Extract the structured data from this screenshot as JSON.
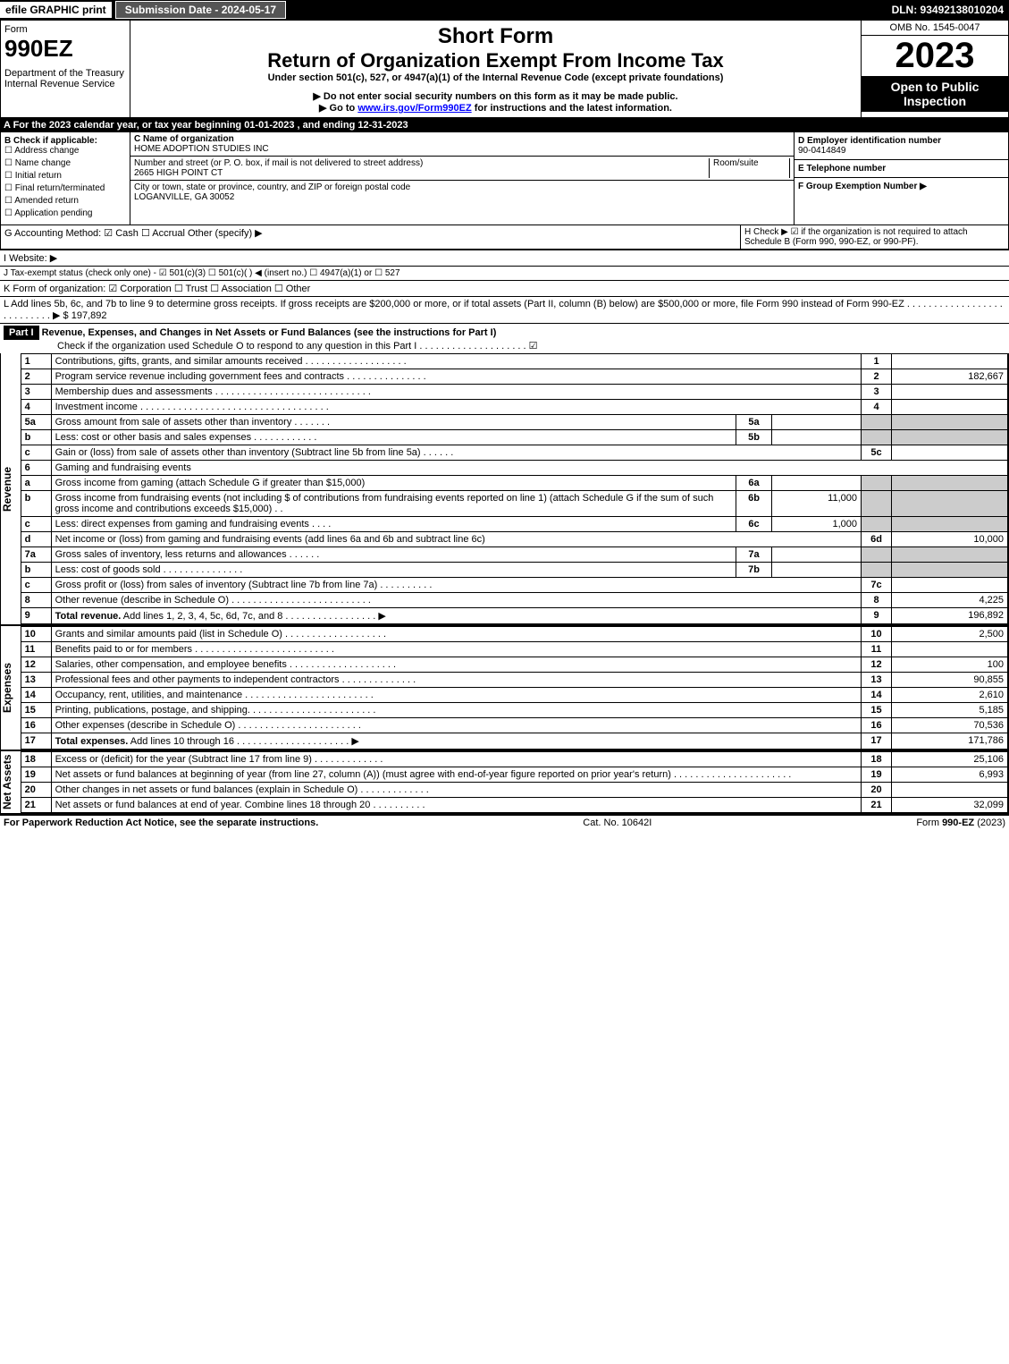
{
  "topbar": {
    "efile": "efile GRAPHIC print",
    "subdate": "Submission Date - 2024-05-17",
    "dln": "DLN: 93492138010204"
  },
  "header": {
    "form_word": "Form",
    "form_no": "990EZ",
    "dept": "Department of the Treasury\nInternal Revenue Service",
    "short_form": "Short Form",
    "title": "Return of Organization Exempt From Income Tax",
    "subtitle": "Under section 501(c), 527, or 4947(a)(1) of the Internal Revenue Code (except private foundations)",
    "note1": "▶ Do not enter social security numbers on this form as it may be made public.",
    "note2_pre": "▶ Go to ",
    "note2_link": "www.irs.gov/Form990EZ",
    "note2_post": " for instructions and the latest information.",
    "omb": "OMB No. 1545-0047",
    "year": "2023",
    "open": "Open to Public Inspection"
  },
  "line_a": "A  For the 2023 calendar year, or tax year beginning 01-01-2023 , and ending 12-31-2023",
  "box_b": {
    "title": "B  Check if applicable:",
    "items": [
      "Address change",
      "Name change",
      "Initial return",
      "Final return/terminated",
      "Amended return",
      "Application pending"
    ]
  },
  "box_c": {
    "label": "C Name of organization",
    "name": "HOME ADOPTION STUDIES INC",
    "addr_label": "Number and street (or P. O. box, if mail is not delivered to street address)",
    "room_label": "Room/suite",
    "addr": "2665 HIGH POINT CT",
    "city_label": "City or town, state or province, country, and ZIP or foreign postal code",
    "city": "LOGANVILLE, GA  30052"
  },
  "box_d": {
    "label": "D Employer identification number",
    "val": "90-0414849"
  },
  "box_e": {
    "label": "E Telephone number",
    "val": ""
  },
  "box_f": {
    "label": "F Group Exemption Number   ▶",
    "val": ""
  },
  "line_g": "G Accounting Method:   ☑ Cash   ☐ Accrual   Other (specify) ▶",
  "line_h": "H  Check ▶ ☑ if the organization is not required to attach Schedule B (Form 990, 990-EZ, or 990-PF).",
  "line_i": "I Website: ▶",
  "line_j": "J Tax-exempt status (check only one) - ☑ 501(c)(3)  ☐ 501(c)(  ) ◀ (insert no.)  ☐ 4947(a)(1) or  ☐ 527",
  "line_k": "K Form of organization:  ☑ Corporation   ☐ Trust   ☐ Association   ☐ Other",
  "line_l": {
    "text": "L Add lines 5b, 6c, and 7b to line 9 to determine gross receipts. If gross receipts are $200,000 or more, or if total assets (Part II, column (B) below) are $500,000 or more, file Form 990 instead of Form 990-EZ  .  .  .  .  .  .  .  .  .  .  .  .  .  .  .  .  .  .  .  .  .  .  .  .  .  .  .  ▶ $",
    "val": "197,892"
  },
  "part1": {
    "label": "Part I",
    "title": "Revenue, Expenses, and Changes in Net Assets or Fund Balances (see the instructions for Part I)",
    "check": "Check if the organization used Schedule O to respond to any question in this Part I  .  .  .  .  .  .  .  .  .  .  .  .  .  .  .  .  .  .  .  . ☑"
  },
  "sections": {
    "revenue": "Revenue",
    "expenses": "Expenses",
    "netassets": "Net Assets"
  },
  "rows": [
    {
      "n": "1",
      "d": "Contributions, gifts, grants, and similar amounts received  .  .  .  .  .  .  .  .  .  .  .  .  .  .  .  .  .  .  .",
      "ln": "1",
      "v": ""
    },
    {
      "n": "2",
      "d": "Program service revenue including government fees and contracts  .  .  .  .  .  .  .  .  .  .  .  .  .  .  .",
      "ln": "2",
      "v": "182,667"
    },
    {
      "n": "3",
      "d": "Membership dues and assessments  .  .  .  .  .  .  .  .  .  .  .  .  .  .  .  .  .  .  .  .  .  .  .  .  .  .  .  .  .",
      "ln": "3",
      "v": ""
    },
    {
      "n": "4",
      "d": "Investment income  .  .  .  .  .  .  .  .  .  .  .  .  .  .  .  .  .  .  .  .  .  .  .  .  .  .  .  .  .  .  .  .  .  .  .",
      "ln": "4",
      "v": ""
    },
    {
      "n": "5a",
      "d": "Gross amount from sale of assets other than inventory  .  .  .  .  .  .  .",
      "sub": "5a",
      "sv": ""
    },
    {
      "n": "b",
      "d": "Less: cost or other basis and sales expenses  .  .  .  .  .  .  .  .  .  .  .  .",
      "sub": "5b",
      "sv": ""
    },
    {
      "n": "c",
      "d": "Gain or (loss) from sale of assets other than inventory (Subtract line 5b from line 5a)  .  .  .  .  .  .",
      "ln": "5c",
      "v": ""
    },
    {
      "n": "6",
      "d": "Gaming and fundraising events"
    },
    {
      "n": "a",
      "d": "Gross income from gaming (attach Schedule G if greater than $15,000)",
      "sub": "6a",
      "sv": ""
    },
    {
      "n": "b",
      "d": "Gross income from fundraising events (not including $                       of contributions from fundraising events reported on line 1) (attach Schedule G if the sum of such gross income and contributions exceeds $15,000)   .   .",
      "sub": "6b",
      "sv": "11,000"
    },
    {
      "n": "c",
      "d": "Less: direct expenses from gaming and fundraising events   .   .   .   .",
      "sub": "6c",
      "sv": "1,000"
    },
    {
      "n": "d",
      "d": "Net income or (loss) from gaming and fundraising events (add lines 6a and 6b and subtract line 6c)",
      "ln": "6d",
      "v": "10,000"
    },
    {
      "n": "7a",
      "d": "Gross sales of inventory, less returns and allowances  .  .  .  .  .  .",
      "sub": "7a",
      "sv": ""
    },
    {
      "n": "b",
      "d": "Less: cost of goods sold          .  .  .  .  .  .  .  .  .  .  .  .  .  .  .",
      "sub": "7b",
      "sv": ""
    },
    {
      "n": "c",
      "d": "Gross profit or (loss) from sales of inventory (Subtract line 7b from line 7a)  .  .  .  .  .  .  .  .  .  .",
      "ln": "7c",
      "v": ""
    },
    {
      "n": "8",
      "d": "Other revenue (describe in Schedule O)  .  .  .  .  .  .  .  .  .  .  .  .  .  .  .  .  .  .  .  .  .  .  .  .  .  .",
      "ln": "8",
      "v": "4,225"
    },
    {
      "n": "9",
      "d": "Total revenue. Add lines 1, 2, 3, 4, 5c, 6d, 7c, and 8  .  .  .  .  .  .  .  .  .  .  .  .  .  .  .  .  .    ▶",
      "ln": "9",
      "v": "196,892",
      "bold": true
    }
  ],
  "exp_rows": [
    {
      "n": "10",
      "d": "Grants and similar amounts paid (list in Schedule O)  .  .  .  .  .  .  .  .  .  .  .  .  .  .  .  .  .  .  .",
      "ln": "10",
      "v": "2,500"
    },
    {
      "n": "11",
      "d": "Benefits paid to or for members     .  .  .  .  .  .  .  .  .  .  .  .  .  .  .  .  .  .  .  .  .  .  .  .  .  .",
      "ln": "11",
      "v": ""
    },
    {
      "n": "12",
      "d": "Salaries, other compensation, and employee benefits  .  .  .  .  .  .  .  .  .  .  .  .  .  .  .  .  .  .  .  .",
      "ln": "12",
      "v": "100"
    },
    {
      "n": "13",
      "d": "Professional fees and other payments to independent contractors  .  .  .  .  .  .  .  .  .  .  .  .  .  .",
      "ln": "13",
      "v": "90,855"
    },
    {
      "n": "14",
      "d": "Occupancy, rent, utilities, and maintenance  .  .  .  .  .  .  .  .  .  .  .  .  .  .  .  .  .  .  .  .  .  .  .  .",
      "ln": "14",
      "v": "2,610"
    },
    {
      "n": "15",
      "d": "Printing, publications, postage, and shipping.  .  .  .  .  .  .  .  .  .  .  .  .  .  .  .  .  .  .  .  .  .  .  .",
      "ln": "15",
      "v": "5,185"
    },
    {
      "n": "16",
      "d": "Other expenses (describe in Schedule O)    .  .  .  .  .  .  .  .  .  .  .  .  .  .  .  .  .  .  .  .  .  .  .",
      "ln": "16",
      "v": "70,536"
    },
    {
      "n": "17",
      "d": "Total expenses. Add lines 10 through 16    .  .  .  .  .  .  .  .  .  .  .  .  .  .  .  .  .  .  .  .  .   ▶",
      "ln": "17",
      "v": "171,786",
      "bold": true
    }
  ],
  "na_rows": [
    {
      "n": "18",
      "d": "Excess or (deficit) for the year (Subtract line 17 from line 9)       .  .  .  .  .  .  .  .  .  .  .  .  .",
      "ln": "18",
      "v": "25,106"
    },
    {
      "n": "19",
      "d": "Net assets or fund balances at beginning of year (from line 27, column (A)) (must agree with end-of-year figure reported on prior year's return)  .  .  .  .  .  .  .  .  .  .  .  .  .  .  .  .  .  .  .  .  .  .",
      "ln": "19",
      "v": "6,993"
    },
    {
      "n": "20",
      "d": "Other changes in net assets or fund balances (explain in Schedule O)  .  .  .  .  .  .  .  .  .  .  .  .  .",
      "ln": "20",
      "v": ""
    },
    {
      "n": "21",
      "d": "Net assets or fund balances at end of year. Combine lines 18 through 20  .  .  .  .  .  .  .  .  .  .",
      "ln": "21",
      "v": "32,099"
    }
  ],
  "footer": {
    "left": "For Paperwork Reduction Act Notice, see the separate instructions.",
    "mid": "Cat. No. 10642I",
    "right": "Form 990-EZ (2023)"
  }
}
